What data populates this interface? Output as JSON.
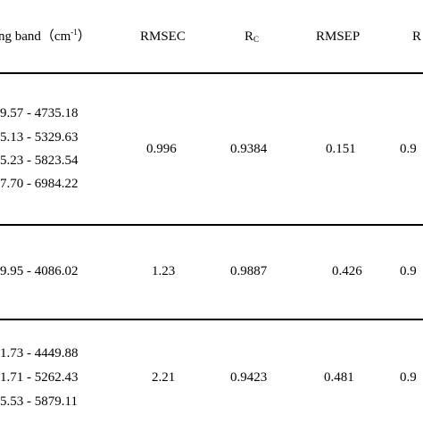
{
  "header": {
    "band_label": "ng band（cm",
    "band_sup": "-1",
    "band_close": "）",
    "rmsec": "RMSEC",
    "rc_main": "R",
    "rc_sub": "C",
    "rmsep": "RMSEP",
    "rp_main": "R"
  },
  "rows": [
    {
      "bands": [
        "9.57 - 4735.18",
        "5.13 - 5329.63",
        "5.23 - 5823.54",
        "7.70 - 6984.22"
      ],
      "rmsec": "0.996",
      "rc": "0.9384",
      "rmsep": "0.151",
      "rp": "0.9"
    },
    {
      "bands": [
        "9.95 - 4086.02"
      ],
      "rmsec": "1.23",
      "rc": "0.9887",
      "rmsep": "0.426",
      "rp": "0.9"
    },
    {
      "bands": [
        "1.73 - 4449.88",
        "1.71 - 5262.43",
        "5.53 - 5879.11"
      ],
      "rmsec": "2.21",
      "rc": "0.9423",
      "rmsep": "0.481",
      "rp": "0.9"
    }
  ]
}
